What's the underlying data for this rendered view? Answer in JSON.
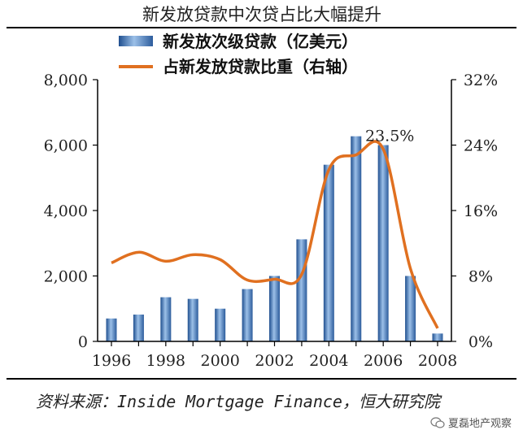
{
  "chart_data": {
    "type": "bar",
    "title": "新发放贷款中次贷占比大幅提升",
    "x": [
      1996,
      1997,
      1998,
      1999,
      2000,
      2001,
      2002,
      2003,
      2004,
      2005,
      2006,
      2007,
      2008
    ],
    "x_tick_labels": [
      "1996",
      "1998",
      "2000",
      "2002",
      "2004",
      "2006",
      "2008"
    ],
    "left_axis": {
      "ylim": [
        0,
        8000
      ],
      "ticks": [
        "0",
        "2,000",
        "4,000",
        "6,000",
        "8,000"
      ]
    },
    "right_axis": {
      "ylim": [
        0,
        32
      ],
      "ticks": [
        "0%",
        "8%",
        "16%",
        "24%",
        "32%"
      ]
    },
    "series": [
      {
        "name": "新发放次级贷款（亿美元）",
        "type": "bar",
        "axis": "left",
        "color": "#3a6fb0",
        "values": [
          700,
          820,
          1350,
          1300,
          1000,
          1600,
          2000,
          3120,
          5400,
          6270,
          6000,
          2000,
          240
        ]
      },
      {
        "name": "占新发放贷款比重（右轴）",
        "type": "line",
        "axis": "right",
        "color": "#e07020",
        "values": [
          9.6,
          10.9,
          9.8,
          10.6,
          10.0,
          7.5,
          7.6,
          8.2,
          21.0,
          22.8,
          23.5,
          8.9,
          1.6
        ]
      }
    ],
    "annotations": [
      {
        "text": "23.5%",
        "x": 2006,
        "series": 1
      }
    ]
  },
  "source_text": "资料来源：Inside Mortgage Finance，恒大研究院",
  "watermark_text": "夏磊地产观察"
}
